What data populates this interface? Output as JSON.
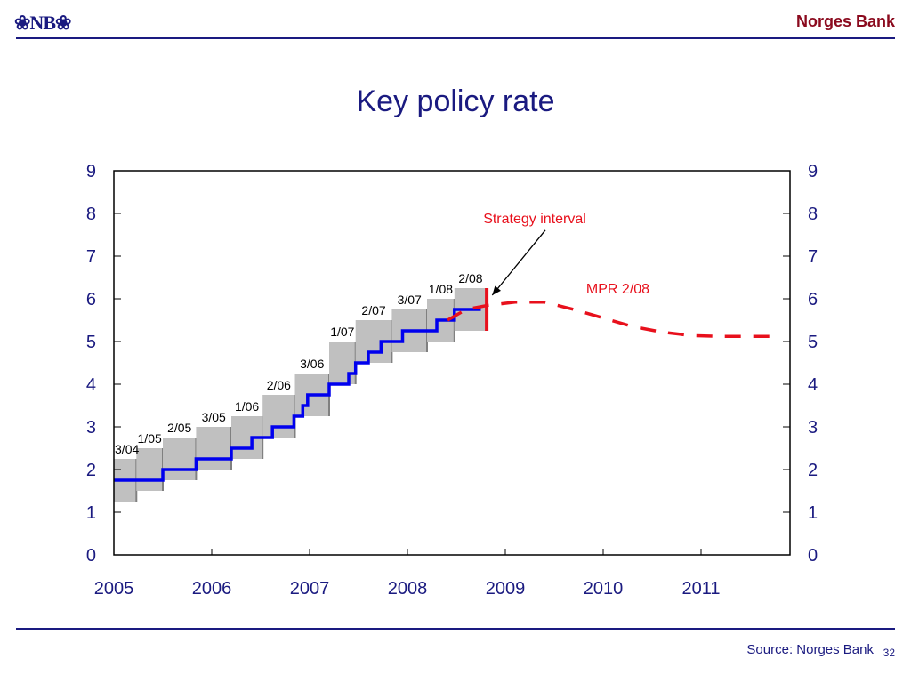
{
  "header": {
    "logo_text": "❀NB❀",
    "brand": "Norges Bank"
  },
  "footer": {
    "source": "Source: Norges Bank",
    "page_number": "32"
  },
  "colors": {
    "navy": "#1a1a80",
    "brand_red": "#8b0a1e",
    "policy_rate_line": "#0000ee",
    "forecast_red": "#e8101c",
    "interval_box": "#c0c0c0",
    "interval_box_edge": "#808080"
  },
  "chart_data": {
    "type": "line",
    "title": "Key policy rate",
    "xlabel": "",
    "ylabel": "",
    "xlim": [
      2005,
      2011.9
    ],
    "ylim": [
      0,
      9
    ],
    "y_ticks": [
      "0",
      "1",
      "2",
      "3",
      "4",
      "5",
      "6",
      "7",
      "8",
      "9"
    ],
    "x_ticks": [
      "2005",
      "2006",
      "2007",
      "2008",
      "2009",
      "2010",
      "2011"
    ],
    "grid": false,
    "dual_y_axis": true,
    "series": [
      {
        "name": "Key policy rate",
        "style": "step",
        "color": "#0000ee",
        "points": [
          [
            2005.0,
            1.75
          ],
          [
            2005.5,
            1.75
          ],
          [
            2005.5,
            2.0
          ],
          [
            2005.84,
            2.0
          ],
          [
            2005.84,
            2.25
          ],
          [
            2006.2,
            2.25
          ],
          [
            2006.2,
            2.5
          ],
          [
            2006.41,
            2.5
          ],
          [
            2006.41,
            2.75
          ],
          [
            2006.62,
            2.75
          ],
          [
            2006.62,
            3.0
          ],
          [
            2006.84,
            3.0
          ],
          [
            2006.84,
            3.25
          ],
          [
            2006.93,
            3.25
          ],
          [
            2006.93,
            3.5
          ],
          [
            2006.98,
            3.5
          ],
          [
            2006.98,
            3.75
          ],
          [
            2007.2,
            3.75
          ],
          [
            2007.2,
            4.0
          ],
          [
            2007.4,
            4.0
          ],
          [
            2007.4,
            4.25
          ],
          [
            2007.47,
            4.25
          ],
          [
            2007.47,
            4.5
          ],
          [
            2007.6,
            4.5
          ],
          [
            2007.6,
            4.75
          ],
          [
            2007.73,
            4.75
          ],
          [
            2007.73,
            5.0
          ],
          [
            2007.95,
            5.0
          ],
          [
            2007.95,
            5.25
          ],
          [
            2008.3,
            5.25
          ],
          [
            2008.3,
            5.5
          ],
          [
            2008.48,
            5.5
          ],
          [
            2008.48,
            5.75
          ],
          [
            2008.75,
            5.75
          ]
        ]
      },
      {
        "name": "MPR 2/08",
        "style": "dashed",
        "color": "#e8101c",
        "points": [
          [
            2008.41,
            5.5
          ],
          [
            2008.6,
            5.75
          ],
          [
            2008.83,
            5.85
          ],
          [
            2009.1,
            5.92
          ],
          [
            2009.4,
            5.92
          ],
          [
            2009.7,
            5.75
          ],
          [
            2010.0,
            5.55
          ],
          [
            2010.3,
            5.35
          ],
          [
            2010.6,
            5.22
          ],
          [
            2010.9,
            5.14
          ],
          [
            2011.2,
            5.12
          ],
          [
            2011.8,
            5.12
          ]
        ]
      }
    ],
    "intervals": [
      {
        "label": "3/04",
        "x0": 2005.0,
        "x1": 2005.23,
        "low": 1.25,
        "high": 2.25
      },
      {
        "label": "1/05",
        "x0": 2005.23,
        "x1": 2005.5,
        "low": 1.5,
        "high": 2.5
      },
      {
        "label": "2/05",
        "x0": 2005.5,
        "x1": 2005.84,
        "low": 1.75,
        "high": 2.75
      },
      {
        "label": "3/05",
        "x0": 2005.84,
        "x1": 2006.2,
        "low": 2.0,
        "high": 3.0
      },
      {
        "label": "1/06",
        "x0": 2006.2,
        "x1": 2006.52,
        "low": 2.25,
        "high": 3.25
      },
      {
        "label": "2/06",
        "x0": 2006.52,
        "x1": 2006.85,
        "low": 2.75,
        "high": 3.75
      },
      {
        "label": "3/06",
        "x0": 2006.85,
        "x1": 2007.2,
        "low": 3.25,
        "high": 4.25
      },
      {
        "label": "1/07",
        "x0": 2007.2,
        "x1": 2007.47,
        "low": 4.0,
        "high": 5.0
      },
      {
        "label": "2/07",
        "x0": 2007.47,
        "x1": 2007.84,
        "low": 4.5,
        "high": 5.5
      },
      {
        "label": "3/07",
        "x0": 2007.84,
        "x1": 2008.2,
        "low": 4.75,
        "high": 5.75
      },
      {
        "label": "1/08",
        "x0": 2008.2,
        "x1": 2008.48,
        "low": 5.0,
        "high": 6.0
      },
      {
        "label": "2/08",
        "x0": 2008.48,
        "x1": 2008.81,
        "low": 5.25,
        "high": 6.25
      }
    ],
    "strategy_interval": {
      "x": 2008.81,
      "low": 5.25,
      "high": 6.25,
      "color": "#e8101c"
    },
    "annotations": [
      {
        "text": "Strategy interval",
        "color": "#e8101c",
        "x": 2009.3,
        "y": 7.9,
        "arrow_to": [
          2008.83,
          6.0
        ]
      },
      {
        "text": "MPR 2/08",
        "color": "#e8101c",
        "x": 2010.15,
        "y": 6.25
      }
    ]
  }
}
